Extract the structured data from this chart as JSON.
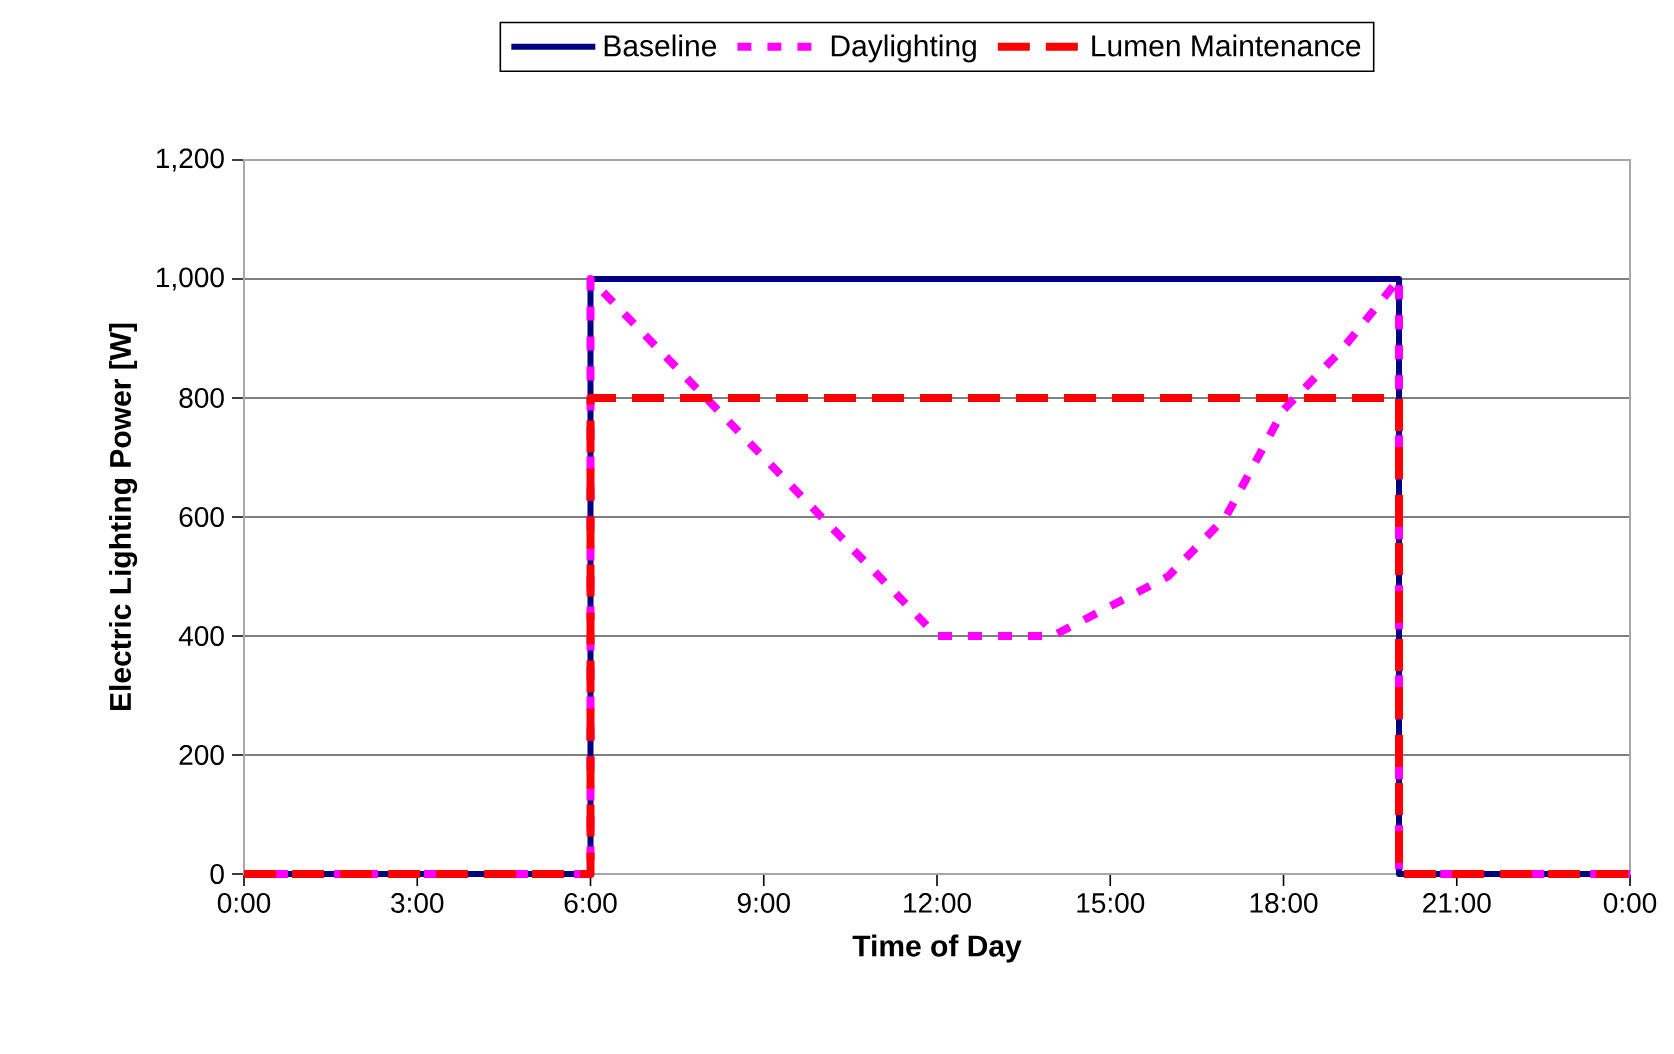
{
  "chart_data": {
    "type": "line",
    "xlabel": "Time of Day",
    "ylabel": "Electric Lighting Power [W]",
    "xlim": [
      0,
      24
    ],
    "xticks": [
      {
        "value": 0,
        "label": "0:00"
      },
      {
        "value": 3,
        "label": "3:00"
      },
      {
        "value": 6,
        "label": "6:00"
      },
      {
        "value": 9,
        "label": "9:00"
      },
      {
        "value": 12,
        "label": "12:00"
      },
      {
        "value": 15,
        "label": "15:00"
      },
      {
        "value": 18,
        "label": "18:00"
      },
      {
        "value": 21,
        "label": "21:00"
      },
      {
        "value": 24,
        "label": "0:00"
      }
    ],
    "ylim": [
      0,
      1200
    ],
    "yticks": [
      0,
      200,
      400,
      600,
      800,
      {
        "value": 1000,
        "label": "1,000"
      },
      {
        "value": 1200,
        "label": "1,200"
      }
    ],
    "grid": "y",
    "legend": "top",
    "series": [
      {
        "name": "Baseline",
        "color": "#000080",
        "line_style": "solid",
        "x": [
          0,
          6,
          6,
          20,
          20,
          24
        ],
        "values": [
          0,
          0,
          1000,
          1000,
          0,
          0
        ]
      },
      {
        "name": "Daylighting",
        "color": "#ff00ff",
        "line_style": "dotted",
        "x": [
          0,
          6,
          6,
          7,
          8,
          9,
          10,
          11,
          12,
          13,
          14,
          15,
          16,
          17,
          18,
          19,
          20,
          20,
          24
        ],
        "values": [
          0,
          0,
          1000,
          900,
          800,
          700,
          600,
          500,
          400,
          400,
          400,
          450,
          500,
          600,
          780,
          880,
          1000,
          0,
          0
        ]
      },
      {
        "name": "Lumen Maintenance",
        "color": "#ff0000",
        "line_style": "dashed",
        "x": [
          0,
          6,
          6,
          20,
          20,
          24
        ],
        "values": [
          0,
          0,
          800,
          800,
          0,
          0
        ]
      }
    ]
  }
}
